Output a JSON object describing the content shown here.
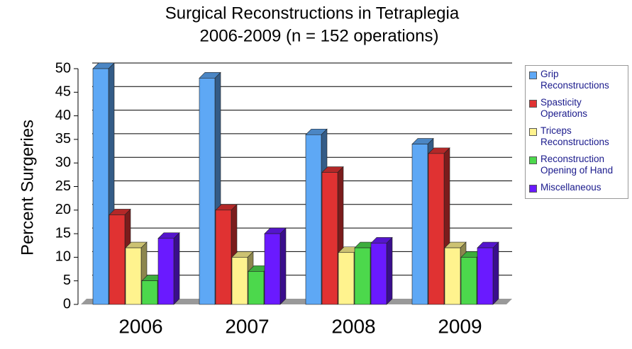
{
  "chart_data": {
    "type": "bar",
    "title": [
      "Surgical Reconstructions in Tetraplegia",
      "2006-2009 (n = 152 operations)"
    ],
    "y_label": "Percent Surgeries",
    "categories": [
      "2006",
      "2007",
      "2008",
      "2009"
    ],
    "series": [
      {
        "name": "Grip Reconstructions",
        "color": "#5ea8f5",
        "values": [
          50,
          48,
          36,
          34
        ]
      },
      {
        "name": "Spasticity Operations",
        "color": "#e03232",
        "values": [
          19,
          20,
          28,
          32
        ]
      },
      {
        "name": "Triceps Reconstructions",
        "color": "#fff38e",
        "values": [
          12,
          10,
          11,
          12
        ]
      },
      {
        "name": "Reconstruction Opening of Hand",
        "color": "#4cd84c",
        "values": [
          5,
          7,
          12,
          10
        ]
      },
      {
        "name": "Miscellaneous",
        "color": "#6a1aff",
        "values": [
          14,
          15,
          13,
          12
        ]
      }
    ],
    "ylim": [
      0,
      50
    ],
    "yticks": [
      0,
      5,
      10,
      15,
      20,
      25,
      30,
      35,
      40,
      45,
      50
    ],
    "grid": true,
    "legend": "right"
  }
}
